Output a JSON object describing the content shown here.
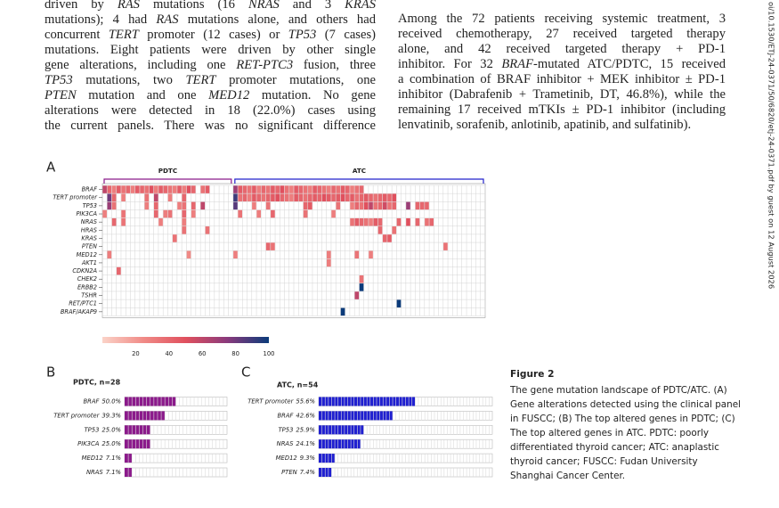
{
  "document": {
    "left_lines": [
      [
        "driven by ",
        {
          "text": "RAS",
          "italic": true
        },
        " mutations (16 ",
        {
          "text": "NRAS",
          "italic": true
        },
        " and 3 ",
        {
          "text": "KRAS",
          "italic": true
        }
      ],
      [
        "mutations); 4 had ",
        {
          "text": "RAS",
          "italic": true
        },
        " mutations alone, and others had"
      ],
      [
        "concurrent ",
        {
          "text": "TERT",
          "italic": true
        },
        " promoter (12 cases) or ",
        {
          "text": "TP53",
          "italic": true
        },
        " (7 cases)"
      ],
      [
        "mutations. Eight patients were driven by other single"
      ],
      [
        "gene alterations, including one ",
        {
          "text": "RET-PTC3",
          "italic": true
        },
        " fusion, three"
      ],
      [
        {
          "text": "TP53",
          "italic": true
        },
        " mutations, two ",
        {
          "text": "TERT",
          "italic": true
        },
        " promoter mutations, one"
      ],
      [
        {
          "text": "PTEN",
          "italic": true
        },
        " mutation and one ",
        {
          "text": "MED12",
          "italic": true
        },
        " mutation. No gene"
      ],
      [
        "alterations were detected in 18 (22.0%) cases using"
      ],
      [
        "the current panels. There was no significant difference"
      ]
    ],
    "right_lines": [
      [
        "Among the 72 patients receiving systemic treatment, 3"
      ],
      [
        "received chemotherapy, 27 received targeted therapy"
      ],
      [
        "alone, and 42 received targeted therapy + PD-1"
      ],
      [
        "inhibitor. For 32 ",
        {
          "text": "BRAF",
          "italic": true
        },
        "-mutated ATC/PDTC, 15 received"
      ],
      [
        "a combination of BRAF inhibitor + MEK inhibitor ± PD-1"
      ],
      [
        "inhibitor (Dabrafenib + Trametinib, DT, 46.8%), while the"
      ],
      [
        "remaining 17 received mTKIs ± PD-1 inhibitor (including"
      ],
      [
        "lenvatinib, sorafenib, anlotinib, apatinib, and sulfatinib)."
      ]
    ]
  },
  "side_note": "oi/10.1530/ETJ-24-0371/50/6820/etj-24-0371.pdf by guest on 12 August 2026",
  "figure": {
    "panel_labels": [
      "A",
      "B",
      "C"
    ],
    "caption_title": "Figure 2",
    "caption_lines": [
      "The gene mutation landscape of PDTC/ATC. (A)",
      "Gene alterations detected using the clinical panel",
      "in FUSCC; (B) The top altered genes in PDTC; (C)",
      "The top altered genes in ATC. PDTC: poorly",
      "differentiated thyroid cancer; ATC: anaplastic",
      "thyroid cancer; FUSCC: Fudan University",
      "Shanghai Cancer Center."
    ]
  },
  "chart_data": [
    {
      "type": "heatmap",
      "xlim": [
        0,
        82
      ],
      "groups": [
        {
          "name": "PDTC",
          "xlim": [
            0,
            28
          ],
          "color": "#8b1a8b"
        },
        {
          "name": "ATC",
          "xlim": [
            28,
            82
          ],
          "color": "#2222cc"
        }
      ],
      "clim": [
        0,
        100
      ],
      "cticks": [
        20,
        40,
        60,
        80,
        100
      ],
      "colorscale": [
        "#fbd3c8",
        "#f08a86",
        "#e0505e",
        "#8a3a7c",
        "#0b3b7a"
      ],
      "series": [
        {
          "name": "BRAF",
          "x": [
            0,
            1,
            2,
            3,
            4,
            5,
            6,
            7,
            8,
            9,
            10,
            11,
            12,
            13,
            14,
            15,
            16,
            17,
            18,
            19,
            21,
            22,
            28,
            29,
            30,
            31,
            32,
            33,
            34,
            35,
            36,
            37,
            38,
            39,
            40,
            41,
            42,
            43,
            44,
            45,
            46,
            47,
            48,
            49,
            50,
            51,
            52,
            53,
            54,
            55
          ],
          "values": [
            60,
            40,
            30,
            45,
            35,
            40,
            30,
            45,
            40,
            35,
            50,
            30,
            45,
            40,
            35,
            30,
            45,
            30,
            50,
            40,
            35,
            45,
            70,
            45,
            40,
            35,
            45,
            30,
            40,
            35,
            45,
            40,
            50,
            35,
            30,
            45,
            40,
            35,
            30,
            45,
            40,
            35,
            30,
            40,
            35,
            45,
            40,
            30,
            35,
            40
          ]
        },
        {
          "name": "TERT promoter",
          "x": [
            1,
            2,
            4,
            9,
            11,
            14,
            17,
            28,
            29,
            30,
            31,
            32,
            33,
            34,
            35,
            36,
            37,
            38,
            39,
            40,
            41,
            42,
            43,
            44,
            45,
            46,
            47,
            48,
            49,
            50,
            51,
            52,
            53,
            54,
            55,
            56,
            57,
            58,
            59,
            60,
            61,
            62
          ],
          "values": [
            80,
            40,
            30,
            35,
            60,
            30,
            40,
            90,
            35,
            40,
            30,
            45,
            40,
            35,
            40,
            45,
            50,
            40,
            35,
            30,
            45,
            40,
            35,
            40,
            45,
            40,
            50,
            45,
            40,
            45,
            50,
            40,
            45,
            35,
            40,
            45,
            40,
            35,
            40,
            45,
            40,
            50
          ]
        },
        {
          "name": "TP53",
          "x": [
            1,
            2,
            9,
            11,
            16,
            17,
            19,
            21,
            28,
            32,
            35,
            43,
            44,
            50,
            53,
            54,
            55,
            56,
            57,
            58,
            59,
            60,
            61,
            62,
            65,
            67,
            68,
            69
          ],
          "values": [
            70,
            35,
            30,
            40,
            30,
            35,
            40,
            60,
            85,
            30,
            35,
            40,
            45,
            35,
            30,
            40,
            35,
            50,
            60,
            35,
            40,
            55,
            35,
            40,
            70,
            40,
            40,
            40
          ]
        },
        {
          "name": "PIK3CA",
          "x": [
            0,
            4,
            11,
            13,
            14,
            17,
            19,
            29,
            33,
            36,
            43,
            49
          ],
          "values": [
            30,
            35,
            40,
            30,
            35,
            40,
            30,
            35,
            30,
            40,
            35,
            30
          ]
        },
        {
          "name": "NRAS",
          "x": [
            2,
            4,
            12,
            17,
            53,
            54,
            55,
            56,
            57,
            58,
            59,
            63,
            65,
            67,
            69,
            70
          ],
          "values": [
            40,
            35,
            30,
            30,
            35,
            45,
            40,
            35,
            30,
            45,
            40,
            40,
            50,
            40,
            35,
            40
          ]
        },
        {
          "name": "HRAS",
          "x": [
            17,
            22,
            59,
            62
          ],
          "values": [
            35,
            35,
            40,
            35
          ]
        },
        {
          "name": "KRAS",
          "x": [
            15,
            60,
            61
          ],
          "values": [
            35,
            40,
            45
          ]
        },
        {
          "name": "PTEN",
          "x": [
            35,
            36,
            73
          ],
          "values": [
            40,
            35,
            35
          ]
        },
        {
          "name": "MED12",
          "x": [
            1,
            18,
            28,
            48,
            54,
            57
          ],
          "values": [
            30,
            25,
            30,
            30,
            35,
            30
          ]
        },
        {
          "name": "AKT1",
          "x": [
            48
          ],
          "values": [
            30
          ]
        },
        {
          "name": "CDKN2A",
          "x": [
            3
          ],
          "values": [
            40
          ]
        },
        {
          "name": "CHEK2",
          "x": [
            55
          ],
          "values": [
            35
          ]
        },
        {
          "name": "ERBB2",
          "x": [
            55
          ],
          "values": [
            100
          ]
        },
        {
          "name": "TSHR",
          "x": [
            54
          ],
          "values": [
            60
          ]
        },
        {
          "name": "RET/PTC1",
          "x": [
            63
          ],
          "values": [
            100
          ]
        },
        {
          "name": "BRAF/AKAP9",
          "x": [
            51
          ],
          "values": [
            100
          ]
        }
      ]
    },
    {
      "type": "bar",
      "orientation": "horizontal",
      "title": "PDTC, n=28",
      "categories": [
        "BRAF",
        "TERT promoter",
        "TP53",
        "PIK3CA",
        "MED12",
        "NRAS"
      ],
      "values": [
        50.0,
        39.3,
        25.0,
        25.0,
        7.1,
        7.1
      ],
      "value_labels": [
        "50.0%",
        "39.3%",
        "25.0%",
        "25.0%",
        "7.1%",
        "7.1%"
      ],
      "color": "#8b1a8b",
      "xlim": [
        0,
        100
      ]
    },
    {
      "type": "bar",
      "orientation": "horizontal",
      "title": "ATC, n=54",
      "categories": [
        "TERT promoter",
        "BRAF",
        "TP53",
        "NRAS",
        "MED12",
        "PTEN"
      ],
      "values": [
        55.6,
        42.6,
        25.9,
        24.1,
        9.3,
        7.4
      ],
      "value_labels": [
        "55.6%",
        "42.6%",
        "25.9%",
        "24.1%",
        "9.3%",
        "7.4%"
      ],
      "color": "#1f1fd0",
      "xlim": [
        0,
        100
      ]
    }
  ]
}
